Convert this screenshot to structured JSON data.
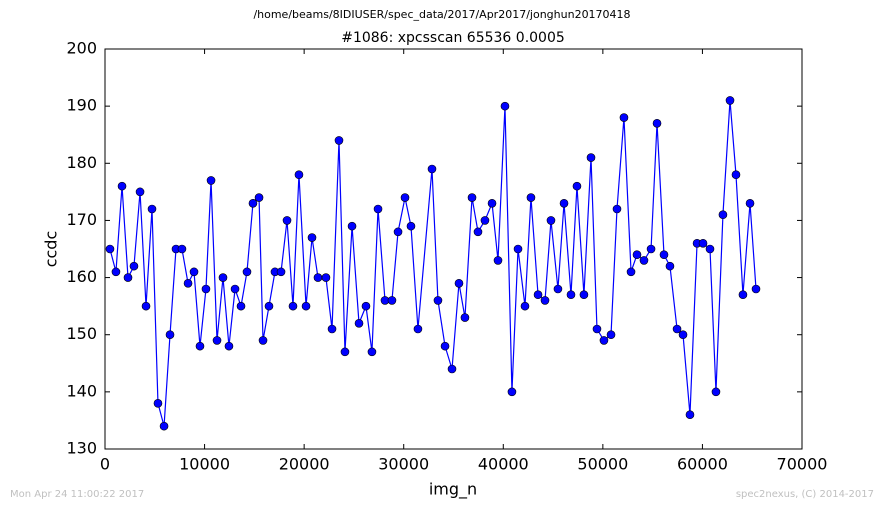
{
  "chart_data": {
    "type": "line",
    "title": "/home/beams/8IDIUSER/spec_data/2017/Apr2017/jonghun20170418",
    "subtitle": "#1086: xpcsscan 65536 0.0005",
    "x_label": "img_n",
    "y_label": "ccdc",
    "annotations": [
      "Mon Apr 24 11:00:22 2017",
      "spec2nexus, (C) 2014-2017"
    ],
    "xlim": [
      0,
      70000
    ],
    "ylim": [
      130,
      200
    ],
    "xticks": [
      0,
      10000,
      20000,
      30000,
      40000,
      50000,
      60000,
      70000
    ],
    "yticks": [
      130,
      140,
      150,
      160,
      170,
      180,
      190,
      200
    ],
    "x": [
      500,
      1100,
      1710,
      2310,
      2910,
      3520,
      4120,
      4720,
      5320,
      5930,
      6530,
      7130,
      7730,
      8340,
      8940,
      9540,
      10140,
      10650,
      11250,
      11850,
      12450,
      13060,
      13660,
      14260,
      14860,
      15470,
      15870,
      16470,
      17070,
      17680,
      18280,
      18880,
      19480,
      20190,
      20790,
      21390,
      22190,
      22800,
      23500,
      24100,
      24810,
      25510,
      26210,
      26810,
      27420,
      28120,
      28820,
      29430,
      30130,
      30730,
      31430,
      32840,
      33440,
      34150,
      34850,
      35550,
      36150,
      36860,
      37460,
      38160,
      38870,
      39470,
      40170,
      40870,
      41480,
      42180,
      42780,
      43490,
      44190,
      44790,
      45490,
      46100,
      46800,
      47400,
      48100,
      48810,
      49410,
      50110,
      50820,
      51420,
      52120,
      52830,
      53430,
      54130,
      54840,
      55440,
      56140,
      56740,
      57450,
      58050,
      58750,
      59460,
      60060,
      60760,
      61360,
      62060,
      62770,
      63370,
      64070,
      64780,
      65380
    ],
    "series": [
      {
        "name": "ccdc",
        "color": "#0000ff",
        "values": [
          165,
          161,
          176,
          160,
          162,
          175,
          155,
          172,
          138,
          134,
          150,
          165,
          165,
          159,
          161,
          148,
          158,
          177,
          149,
          160,
          148,
          158,
          155,
          161,
          173,
          174,
          149,
          155,
          161,
          161,
          170,
          155,
          178,
          155,
          167,
          160,
          160,
          151,
          184,
          147,
          169,
          152,
          155,
          147,
          172,
          156,
          156,
          168,
          174,
          169,
          151,
          179,
          156,
          148,
          144,
          159,
          153,
          174,
          168,
          170,
          173,
          163,
          190,
          140,
          165,
          155,
          174,
          157,
          156,
          170,
          158,
          173,
          157,
          176,
          157,
          181,
          151,
          149,
          150,
          172,
          188,
          161,
          164,
          163,
          165,
          187,
          164,
          162,
          151,
          150,
          136,
          166,
          166,
          165,
          140,
          171,
          191,
          178,
          157,
          173,
          158
        ]
      }
    ]
  }
}
